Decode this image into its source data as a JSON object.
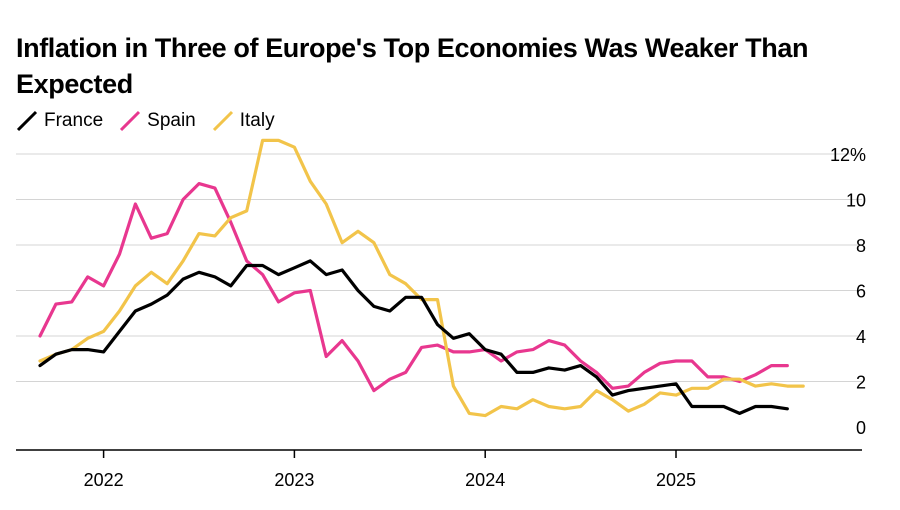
{
  "title": "Inflation in Three of Europe's Top Economies Was Weaker Than Expected",
  "colors": {
    "France": "#000000",
    "Spain": "#e8378f",
    "Italy": "#f2c44a",
    "grid": "#d4d4d4",
    "axis": "#000000"
  },
  "chart_data": {
    "type": "line",
    "title": "Inflation in Three of Europe's Top Economies Was Weaker Than Expected",
    "xlabel": "",
    "ylabel": "",
    "y_unit": "%",
    "ylim": [
      -1,
      12
    ],
    "yticks": [
      0,
      2,
      4,
      6,
      8,
      10,
      12
    ],
    "ytick_labels": [
      "0",
      "2",
      "4",
      "6",
      "8",
      "10",
      "12%"
    ],
    "xticks": [
      "2022",
      "2023",
      "2024",
      "2025"
    ],
    "x_start": "2021-09",
    "grid": true,
    "legend_position": "top-left",
    "series": [
      {
        "name": "France",
        "color": "#000000",
        "values": [
          2.7,
          3.2,
          3.4,
          3.4,
          3.3,
          4.2,
          5.1,
          5.4,
          5.8,
          6.5,
          6.8,
          6.6,
          6.2,
          7.1,
          7.1,
          6.7,
          7.0,
          7.3,
          6.7,
          6.9,
          6.0,
          5.3,
          5.1,
          5.7,
          5.7,
          4.5,
          3.9,
          4.1,
          3.4,
          3.2,
          2.4,
          2.4,
          2.6,
          2.5,
          2.7,
          2.2,
          1.4,
          1.6,
          1.7,
          1.8,
          1.9,
          0.9,
          0.9,
          0.9,
          0.6,
          0.9,
          0.9,
          0.8
        ]
      },
      {
        "name": "Spain",
        "color": "#e8378f",
        "values": [
          4.0,
          5.4,
          5.5,
          6.6,
          6.2,
          7.6,
          9.8,
          8.3,
          8.5,
          10.0,
          10.7,
          10.5,
          9.0,
          7.3,
          6.7,
          5.5,
          5.9,
          6.0,
          3.1,
          3.8,
          2.9,
          1.6,
          2.1,
          2.4,
          3.5,
          3.6,
          3.3,
          3.3,
          3.4,
          2.9,
          3.3,
          3.4,
          3.8,
          3.6,
          2.9,
          2.4,
          1.7,
          1.8,
          2.4,
          2.8,
          2.9,
          2.9,
          2.2,
          2.2,
          2.0,
          2.3,
          2.7,
          2.7
        ]
      },
      {
        "name": "Italy",
        "color": "#f2c44a",
        "values": [
          2.9,
          3.2,
          3.4,
          3.9,
          4.2,
          5.1,
          6.2,
          6.8,
          6.3,
          7.3,
          8.5,
          8.4,
          9.2,
          9.5,
          12.6,
          12.6,
          12.3,
          10.8,
          9.8,
          8.1,
          8.6,
          8.1,
          6.7,
          6.3,
          5.6,
          5.6,
          1.8,
          0.6,
          0.5,
          0.9,
          0.8,
          1.2,
          0.9,
          0.8,
          0.9,
          1.6,
          1.2,
          0.7,
          1.0,
          1.5,
          1.4,
          1.7,
          1.7,
          2.1,
          2.1,
          1.8,
          1.9,
          1.8,
          1.8
        ]
      }
    ]
  }
}
